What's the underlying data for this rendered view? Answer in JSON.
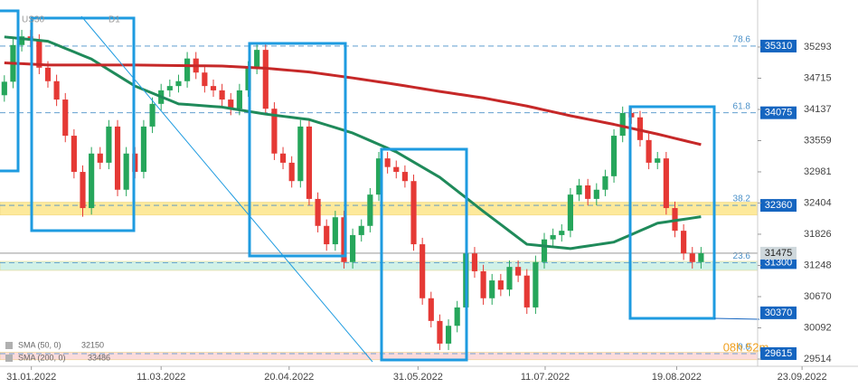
{
  "chart_data": {
    "type": "candlestick",
    "symbol": "US30",
    "timeframe": "D1",
    "open": [
      34400,
      34650,
      35330,
      35490,
      35410,
      34910,
      34660,
      34320,
      33650,
      32980,
      32310,
      33320,
      33150,
      33820,
      32650,
      33320,
      32980,
      33820,
      34240,
      34490,
      34570,
      34660,
      35080,
      34820,
      34570,
      34490,
      34320,
      34150,
      34490,
      34910,
      35240,
      34150,
      33320,
      33150,
      32810,
      33820,
      32480,
      31980,
      31640,
      32140,
      31310,
      31810,
      31980,
      32560,
      33230,
      33070,
      32980,
      32810,
      31640,
      30640,
      30220,
      29800,
      30130,
      30470,
      31470,
      31140,
      30640,
      30970,
      30800,
      31220,
      31060,
      30470,
      31310,
      31730,
      31810,
      31890,
      32560,
      32730,
      32480,
      32650,
      32900,
      33650,
      34070,
      33990,
      33570,
      33150,
      33230,
      32310,
      31890,
      31470,
      31310
    ],
    "high": [
      34770,
      35450,
      35610,
      35610,
      35530,
      35030,
      34780,
      34440,
      33770,
      33100,
      33440,
      33440,
      33940,
      33940,
      33440,
      33440,
      33940,
      34360,
      34610,
      34690,
      34780,
      35200,
      35200,
      34940,
      34690,
      34610,
      34440,
      34610,
      35030,
      35360,
      35360,
      34270,
      33440,
      33270,
      33940,
      33940,
      32600,
      32100,
      32260,
      32260,
      31930,
      32100,
      32680,
      33350,
      33350,
      33190,
      33100,
      32930,
      31760,
      30760,
      30340,
      30250,
      30590,
      31590,
      31590,
      31260,
      31090,
      31090,
      31340,
      31340,
      31180,
      31430,
      31850,
      31930,
      32010,
      32680,
      32850,
      32850,
      32770,
      33020,
      33770,
      34190,
      34190,
      34110,
      33690,
      33350,
      33350,
      32430,
      32010,
      31590,
      31590
    ],
    "low": [
      34280,
      34530,
      35210,
      35290,
      34790,
      34540,
      34200,
      33530,
      32860,
      32150,
      32190,
      33030,
      33030,
      32530,
      32530,
      32860,
      32860,
      33700,
      34120,
      34370,
      34450,
      34540,
      34700,
      34450,
      34370,
      34200,
      34030,
      34030,
      34370,
      34790,
      34030,
      33200,
      33030,
      32690,
      32690,
      32360,
      31860,
      31520,
      31520,
      31190,
      31190,
      31690,
      31860,
      32440,
      32950,
      32860,
      32690,
      31520,
      30520,
      30100,
      29680,
      29680,
      30010,
      30350,
      31020,
      30520,
      30520,
      30680,
      30680,
      30940,
      30350,
      30350,
      31190,
      31610,
      31690,
      31770,
      32440,
      32360,
      32360,
      32530,
      32780,
      33530,
      33870,
      33450,
      33030,
      33030,
      32190,
      31770,
      31350,
      31190,
      31190
    ],
    "close": [
      34650,
      35330,
      35490,
      35410,
      34910,
      34660,
      34320,
      33650,
      32980,
      32310,
      33320,
      33150,
      33820,
      32650,
      33320,
      32980,
      33820,
      34240,
      34490,
      34570,
      34660,
      35080,
      34820,
      34570,
      34490,
      34320,
      34150,
      34490,
      34910,
      35240,
      34150,
      33320,
      33150,
      32810,
      33820,
      32480,
      31980,
      31640,
      32140,
      31310,
      31810,
      31980,
      32560,
      33230,
      33070,
      32980,
      32810,
      31640,
      30640,
      30220,
      29800,
      30130,
      30470,
      31470,
      31140,
      30640,
      30970,
      30800,
      31220,
      31060,
      30470,
      31310,
      31730,
      31810,
      31890,
      32560,
      32730,
      32480,
      32650,
      32900,
      33650,
      34070,
      33990,
      33570,
      33150,
      33230,
      32310,
      31890,
      31470,
      31310,
      31475
    ],
    "up_color": "#26a65b",
    "down_color": "#e53935",
    "series": [
      {
        "name": "SMA (50, 0)",
        "color": "#1f8a5a",
        "values": [
          35480,
          35464,
          35448,
          35432,
          35416,
          35400,
          35334,
          35268,
          35202,
          35136,
          35070,
          34970,
          34870,
          34770,
          34670,
          34570,
          34504,
          34438,
          34372,
          34306,
          34240,
          34228,
          34216,
          34204,
          34192,
          34180,
          34154,
          34128,
          34102,
          34076,
          34050,
          34030,
          34010,
          33990,
          33970,
          33950,
          33900,
          33850,
          33800,
          33750,
          33700,
          33630,
          33560,
          33490,
          33420,
          33350,
          33256,
          33162,
          33068,
          32974,
          32880,
          32754,
          32628,
          32502,
          32376,
          32250,
          32128,
          32006,
          31884,
          31762,
          31640,
          31624,
          31608,
          31592,
          31576,
          31560,
          31584,
          31608,
          31632,
          31656,
          31680,
          31750,
          31820,
          31890,
          31960,
          32030,
          32054,
          32078,
          32102,
          32126,
          32150
        ]
      },
      {
        "name": "SMA (200, 0)",
        "color": "#c62828",
        "values": [
          35000,
          34992,
          34984,
          34976,
          34968,
          34960,
          34960,
          34960,
          34960,
          34960,
          34960,
          34960,
          34960,
          34960,
          34960,
          34960,
          34958,
          34956,
          34954,
          34952,
          34950,
          34948,
          34946,
          34944,
          34942,
          34940,
          34932,
          34924,
          34916,
          34908,
          34900,
          34886,
          34872,
          34858,
          34844,
          34830,
          34808,
          34786,
          34764,
          34742,
          34720,
          34696,
          34672,
          34648,
          34624,
          34600,
          34574,
          34548,
          34522,
          34496,
          34470,
          34446,
          34422,
          34398,
          34374,
          34350,
          34320,
          34290,
          34260,
          34230,
          34200,
          34164,
          34128,
          34092,
          34056,
          34020,
          33988,
          33956,
          33924,
          33892,
          33860,
          33824,
          33788,
          33752,
          33716,
          33680,
          33641,
          33602,
          33563,
          33524,
          33486
        ]
      }
    ],
    "fib_levels": [
      {
        "ratio": 78.6,
        "price": 35310
      },
      {
        "ratio": 61.8,
        "price": 34075
      },
      {
        "ratio": 38.2,
        "price": 32360
      },
      {
        "ratio": 23.6,
        "price": 31300
      },
      {
        "ratio": {
          "value": 0,
          "label": "0.0"
        },
        "price": 29615
      }
    ],
    "zones": [
      {
        "low": 32180,
        "high": 32420,
        "color": "#fde68a"
      },
      {
        "low": 31156,
        "high": 31323,
        "color": "#c8efe4"
      },
      {
        "low": 29500,
        "high": 29640,
        "color": "#fbd5d5"
      }
    ],
    "level_tag": 30370,
    "current_price": 31475,
    "timer": "08h 52m",
    "xlim": [
      -0.5,
      86.5
    ],
    "xticks": [
      {
        "value": 3.1,
        "label": "31.01.2022"
      },
      {
        "value": 18,
        "label": "11.03.2022"
      },
      {
        "value": 32.7,
        "label": "20.04.2022"
      },
      {
        "value": 47.5,
        "label": "31.05.2022"
      },
      {
        "value": 62.1,
        "label": "11.07.2022"
      },
      {
        "value": 77.2,
        "label": "19.08.2022"
      },
      {
        "value": 91.6,
        "label": "23.09.2022"
      }
    ],
    "ylim": [
      29380,
      35996
    ],
    "yticks": [
      35293,
      34715,
      34137,
      33559,
      32981,
      32404,
      31826,
      31248,
      30670,
      30092,
      29514
    ]
  }
}
